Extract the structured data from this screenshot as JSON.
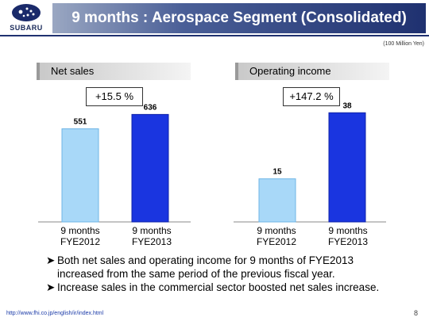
{
  "header": {
    "logo_text": "SUBARU",
    "title": "9 months : Aerospace Segment (Consolidated)"
  },
  "units_note": "(100 Million Yen)",
  "panels": [
    {
      "label": "Net sales",
      "change": "+15.5 %"
    },
    {
      "label": "Operating income",
      "change": "+147.2 %"
    }
  ],
  "chart_data": [
    {
      "type": "bar",
      "title": "Net sales",
      "categories": [
        "9 months\nFYE2012",
        "9 months\nFYE2013"
      ],
      "values": [
        551,
        636
      ],
      "ylim": [
        0,
        680
      ],
      "grid": false,
      "colors": [
        "#a8d8f8",
        "#1a35e0"
      ]
    },
    {
      "type": "bar",
      "title": "Operating income",
      "categories": [
        "9 months\nFYE2012",
        "9 months\nFYE2013"
      ],
      "values": [
        15,
        38
      ],
      "ylim": [
        0,
        40
      ],
      "grid": false,
      "colors": [
        "#a8d8f8",
        "#1a35e0"
      ]
    }
  ],
  "bullets": [
    "Both net sales and operating income for 9 months of FYE2013 increased from the same period of the previous fiscal year.",
    "Increase sales in the commercial sector boosted net sales increase."
  ],
  "bullet_lines": [
    [
      "Both net sales and operating income for 9 months of FYE2013",
      "increased from the same period of the previous fiscal year."
    ],
    [
      "Increase sales in the commercial sector boosted net sales increase."
    ]
  ],
  "footer": {
    "url": "http://www.fhi.co.jp/english/ir/index.html",
    "page": "8"
  }
}
